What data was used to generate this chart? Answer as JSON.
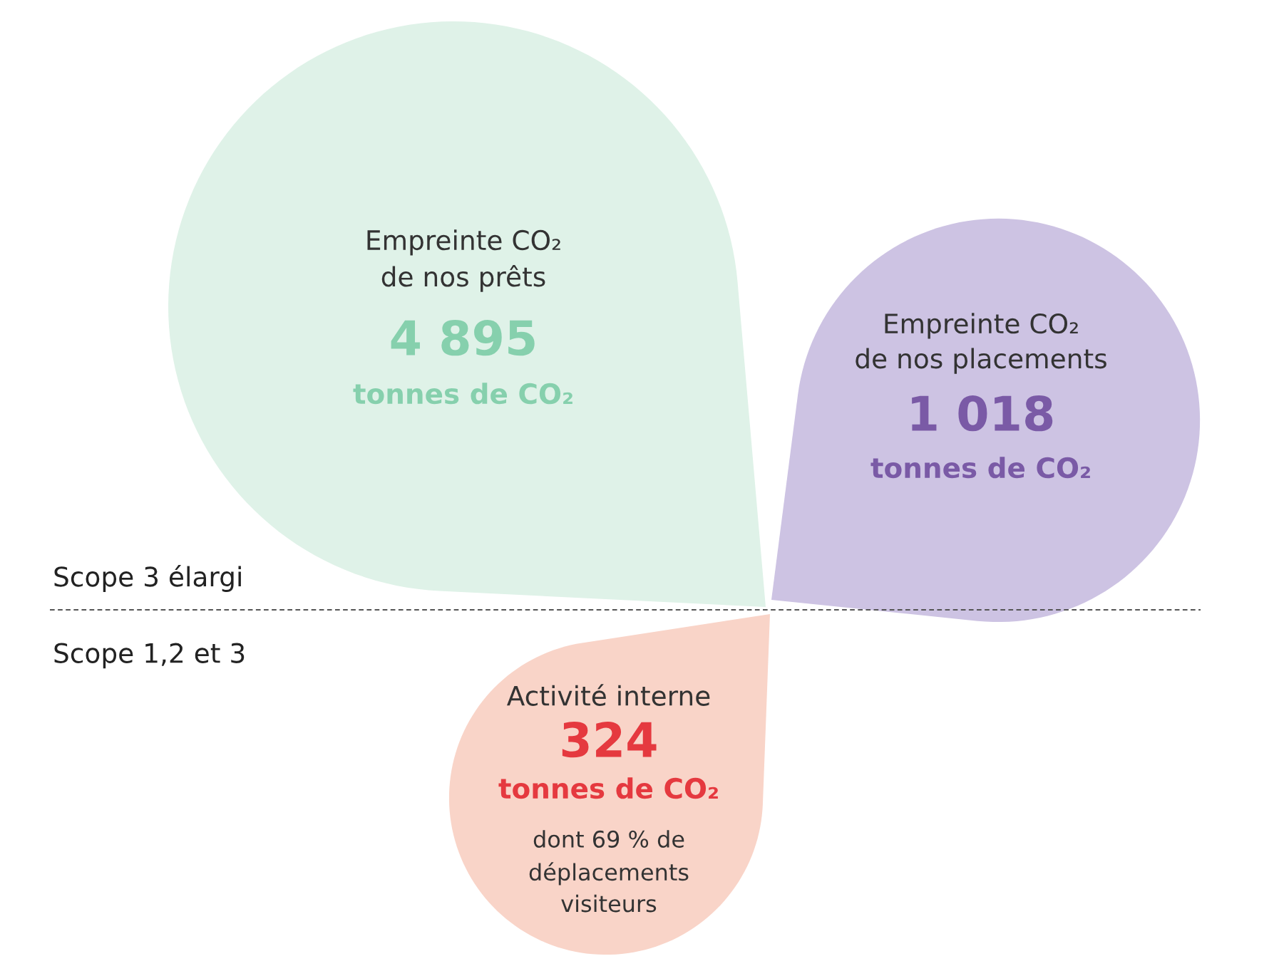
{
  "chart_data": {
    "type": "other",
    "categories": [
      "Empreinte CO₂\nde nos prêts",
      "Empreinte CO₂\nde nos placements",
      "Activité interne"
    ],
    "values": [
      4895,
      1018,
      324
    ],
    "value_labels": [
      "4 895",
      "1 018",
      "324"
    ],
    "colors": [
      "#dff2e8",
      "#cdc3e3",
      "#f9d4c8"
    ],
    "annotations": [
      "tonnes de CO₂",
      "tonnes de CO₂",
      "tonnes de CO₂",
      "dont 69 % de\ndéplacements\nvisiteurs",
      "Scope 3 élargi",
      "Scope 1,2 et 3"
    ]
  }
}
